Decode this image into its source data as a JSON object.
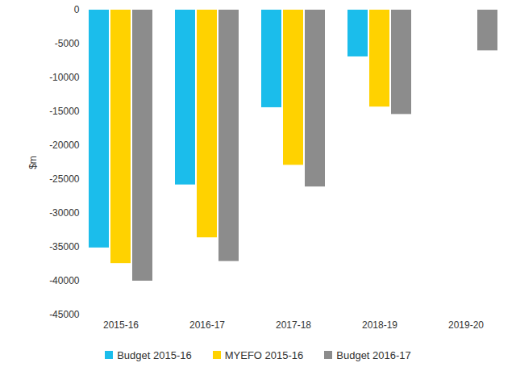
{
  "chart_data": {
    "type": "bar",
    "ylabel": "$m",
    "categories": [
      "2015-16",
      "2016-17",
      "2017-18",
      "2018-19",
      "2019-20"
    ],
    "series": [
      {
        "name": "Budget 2015-16",
        "color": "#1bbdeb",
        "values": [
          -35100,
          -25800,
          -14400,
          -6900,
          null
        ]
      },
      {
        "name": "MYEFO 2015-16",
        "color": "#ffd200",
        "values": [
          -37400,
          -33600,
          -22900,
          -14300,
          null
        ]
      },
      {
        "name": "Budget 2016-17",
        "color": "#8c8c8c",
        "values": [
          -40000,
          -37100,
          -26100,
          -15400,
          -6000
        ]
      }
    ],
    "ylim": [
      -45000,
      0
    ],
    "yticks": [
      -45000,
      -40000,
      -35000,
      -30000,
      -25000,
      -20000,
      -15000,
      -10000,
      -5000,
      0
    ],
    "grid": false,
    "legend": "bottom"
  }
}
